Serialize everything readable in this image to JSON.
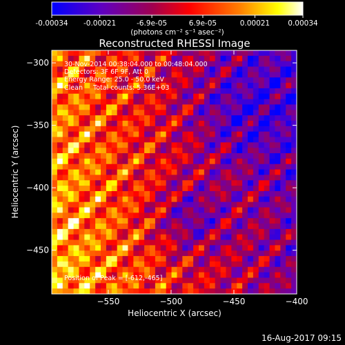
{
  "chart_data": {
    "type": "heatmap",
    "colorbar": {
      "tick_labels": [
        "-0.00034",
        "-0.00021",
        "-6.9e-05",
        "6.9e-05",
        "0.00021",
        "0.00034"
      ],
      "tick_values": [
        -0.00034,
        -0.00021,
        -6.9e-05,
        6.9e-05,
        0.00021,
        0.00034
      ],
      "range": [
        -0.00034,
        0.00034
      ],
      "unit_label": "(photons cm⁻² s⁻¹ asec⁻²)",
      "colors": [
        "#0000ff",
        "#6000c0",
        "#a00050",
        "#ff0000",
        "#ff8000",
        "#ffff00",
        "#ffffff"
      ]
    },
    "title": "Reconstructed RHESSI Image",
    "annotations": [
      "30-Nov-2014 00:38:04.000 to 00:48:04.000",
      "Detectors: 3F 6F 9F, Att 0",
      "Energy Range: 25.0 - 50.0 keV",
      "Clean     Total counts: 5.36E+03"
    ],
    "peak_label": "Position of Peak = [-612,-465]",
    "xlabel": "Heliocentric X (arcsec)",
    "ylabel": "Heliocentric Y (arcsec)",
    "xlim": [
      -595,
      -400
    ],
    "ylim": [
      -485,
      -290
    ],
    "x_ticks": [
      -550,
      -500,
      -450,
      -400
    ],
    "x_tick_labels": [
      "−550",
      "−500",
      "−450",
      "−400"
    ],
    "y_ticks": [
      -300,
      -350,
      -400,
      -450
    ],
    "y_tick_labels": [
      "−300",
      "−350",
      "−400",
      "−450"
    ],
    "grid": false
  },
  "footer": {
    "date": "16-Aug-2017 09:15"
  }
}
